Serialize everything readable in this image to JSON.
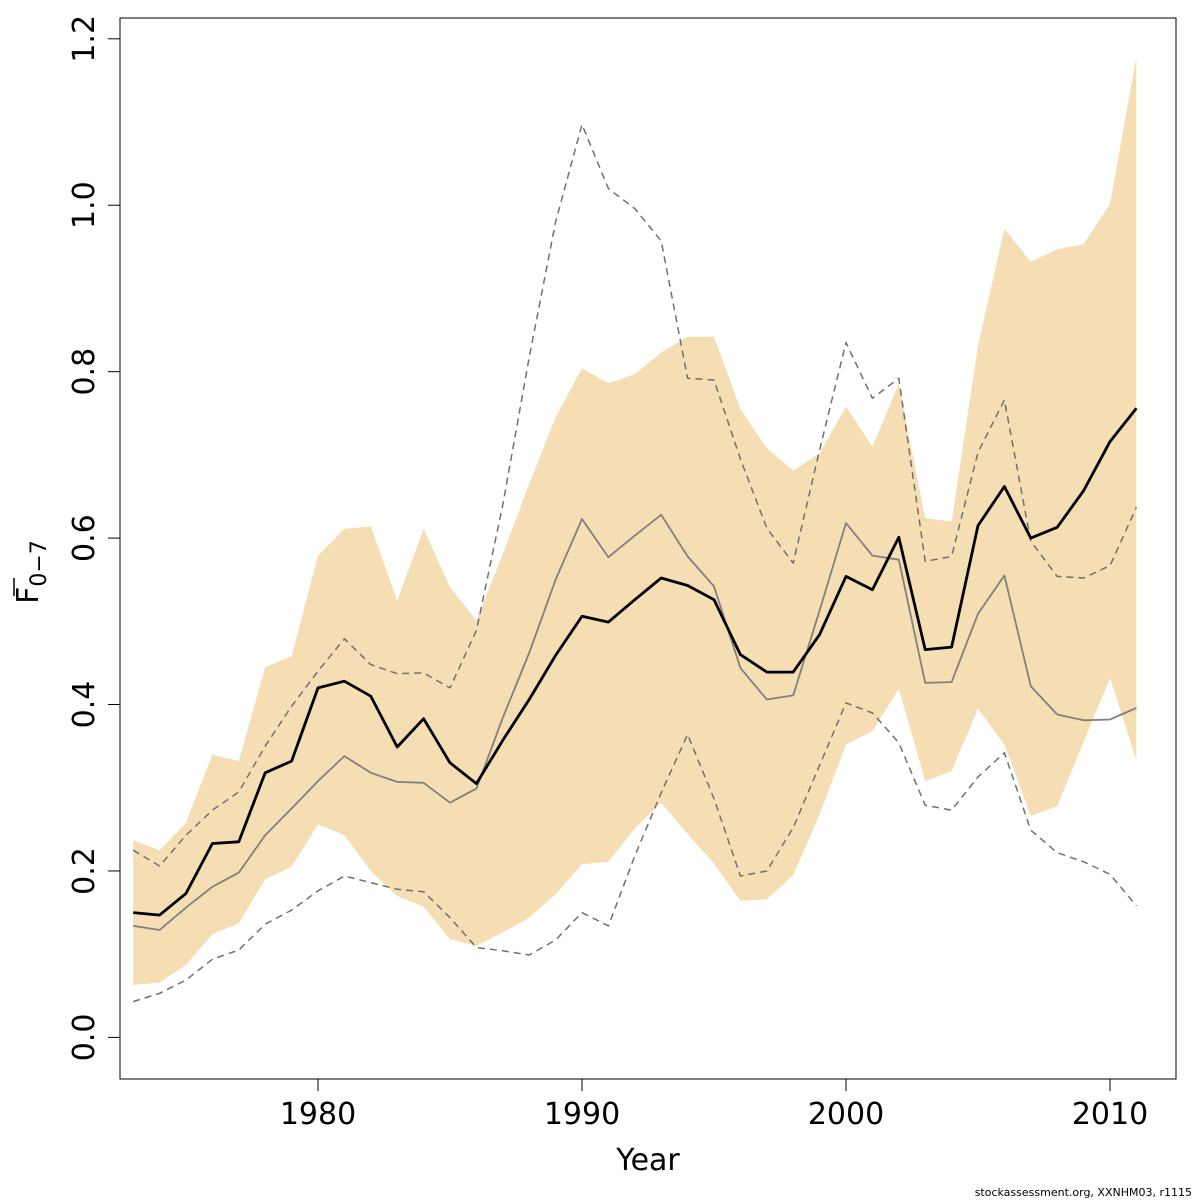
{
  "chart_data": {
    "type": "line",
    "xlabel": "Year",
    "ylabel_main": "F",
    "ylabel_sub": "0−7",
    "xlim": [
      1972.5,
      2012.5
    ],
    "ylim": [
      -0.05,
      1.225
    ],
    "xticks": [
      1980,
      1990,
      2000,
      2010
    ],
    "yticks": [
      0.0,
      0.2,
      0.4,
      0.6,
      0.8,
      1.0,
      1.2
    ],
    "ytick_labels": [
      "0.0",
      "0.2",
      "0.4",
      "0.6",
      "0.8",
      "1.0",
      "1.2"
    ],
    "grid": false,
    "colors": {
      "band": "#f5deb3",
      "estimate": "#000000",
      "comparison": "#808080",
      "comparison_bounds": "#707070"
    },
    "x": [
      1973,
      1974,
      1975,
      1976,
      1977,
      1978,
      1979,
      1980,
      1981,
      1982,
      1983,
      1984,
      1985,
      1986,
      1987,
      1988,
      1989,
      1990,
      1991,
      1992,
      1993,
      1994,
      1995,
      1996,
      1997,
      1998,
      1999,
      2000,
      2001,
      2002,
      2003,
      2004,
      2005,
      2006,
      2007,
      2008,
      2009,
      2010,
      2011
    ],
    "band_upper": [
      0.237,
      0.225,
      0.258,
      0.34,
      0.332,
      0.445,
      0.458,
      0.579,
      0.611,
      0.614,
      0.525,
      0.611,
      0.541,
      0.501,
      0.581,
      0.665,
      0.745,
      0.804,
      0.786,
      0.797,
      0.823,
      0.842,
      0.842,
      0.755,
      0.708,
      0.681,
      0.702,
      0.758,
      0.71,
      0.785,
      0.624,
      0.62,
      0.831,
      0.972,
      0.932,
      0.947,
      0.953,
      1.002,
      1.178
    ],
    "band_lower": [
      0.063,
      0.066,
      0.087,
      0.124,
      0.137,
      0.19,
      0.205,
      0.256,
      0.243,
      0.2,
      0.17,
      0.157,
      0.118,
      0.11,
      0.126,
      0.144,
      0.172,
      0.208,
      0.211,
      0.251,
      0.282,
      0.244,
      0.209,
      0.164,
      0.166,
      0.195,
      0.268,
      0.352,
      0.368,
      0.419,
      0.308,
      0.32,
      0.395,
      0.352,
      0.266,
      0.278,
      0.355,
      0.432,
      0.333
    ],
    "series": [
      {
        "values": [
          0.15,
          0.147,
          0.173,
          0.233,
          0.235,
          0.318,
          0.332,
          0.42,
          0.428,
          0.41,
          0.349,
          0.383,
          0.33,
          0.305,
          0.357,
          0.406,
          0.459,
          0.506,
          0.499,
          0.526,
          0.552,
          0.543,
          0.526,
          0.46,
          0.439,
          0.439,
          0.484,
          0.554,
          0.538,
          0.601,
          0.466,
          0.469,
          0.615,
          0.662,
          0.6,
          0.613,
          0.657,
          0.716,
          0.756
        ],
        "style": "thick"
      },
      {
        "values": [
          0.134,
          0.129,
          0.156,
          0.181,
          0.198,
          0.243,
          0.275,
          0.308,
          0.338,
          0.318,
          0.307,
          0.306,
          0.282,
          0.299,
          0.384,
          0.462,
          0.55,
          0.623,
          0.577,
          0.603,
          0.628,
          0.578,
          0.542,
          0.444,
          0.406,
          0.411,
          0.513,
          0.618,
          0.579,
          0.574,
          0.426,
          0.427,
          0.509,
          0.555,
          0.422,
          0.388,
          0.381,
          0.382,
          0.396
        ],
        "style": "thin"
      },
      {
        "values": [
          0.225,
          0.206,
          0.243,
          0.273,
          0.295,
          0.35,
          0.398,
          0.44,
          0.479,
          0.448,
          0.437,
          0.438,
          0.42,
          0.489,
          0.64,
          0.817,
          0.98,
          1.097,
          1.02,
          0.996,
          0.957,
          0.792,
          0.79,
          0.695,
          0.612,
          0.57,
          0.706,
          0.835,
          0.768,
          0.792,
          0.572,
          0.578,
          0.703,
          0.766,
          0.596,
          0.554,
          0.552,
          0.567,
          0.637
        ],
        "style": "dashed"
      },
      {
        "values": [
          0.043,
          0.053,
          0.069,
          0.094,
          0.105,
          0.136,
          0.153,
          0.176,
          0.194,
          0.186,
          0.178,
          0.175,
          0.144,
          0.108,
          0.104,
          0.099,
          0.117,
          0.15,
          0.134,
          0.218,
          0.294,
          0.364,
          0.287,
          0.194,
          0.2,
          0.252,
          0.327,
          0.402,
          0.39,
          0.354,
          0.279,
          0.273,
          0.313,
          0.342,
          0.249,
          0.222,
          0.211,
          0.196,
          0.158
        ],
        "style": "dashed"
      }
    ],
    "credit": "stockassessment.org, XXNHM03, r1115"
  }
}
